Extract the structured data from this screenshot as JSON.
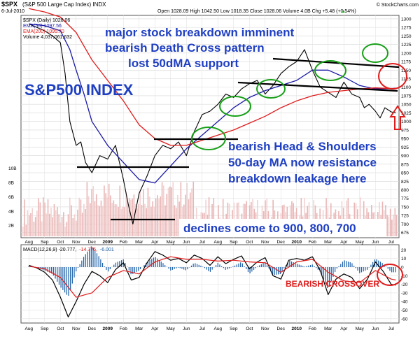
{
  "header": {
    "symbol": "$SPX",
    "full_name": "(S&P 500 Large Cap Index) INDX",
    "date": "6-Jul-2010",
    "ohlc": "Open 1028.09  High 1042.50  Low 1018.35  Close 1028.06  Volume 4.0B  Chg +5.48 (+0.54%)",
    "source": "© StockCharts.com",
    "up_arrow": "▲"
  },
  "legend": {
    "daily": "$SPX (Daily) 1028.06",
    "ema50": "EMA(50) 1097.56",
    "ema200": "EMA(200) 1095.70",
    "volume": "Volume 4,037,061,632"
  },
  "annotations": {
    "title_line1": "major stock breakdown imminent",
    "title_line2": "bearish Death Cross pattern",
    "title_line3": "lost 50dMA support",
    "index_label": "S&P500 INDEX",
    "hs_line1": "bearish Head & Shoulders",
    "hs_line2": "50-day MA now resistance",
    "hs_line3": "breakdown leakage here",
    "declines": "declines come to 900, 800, 700",
    "crossover": "BEARISH CROSSOVER"
  },
  "macd_label": {
    "prefix": "MACD(12,26,9) -20.777,",
    "signal": "-14.776,",
    "hist": "-6.001"
  },
  "colors": {
    "price": "#000000",
    "ema50": "#1a1aa6",
    "ema200": "#e01b1b",
    "volume_up": "#eab6b6",
    "volume_down": "#f2d2d2",
    "annotation_blue": "#1f3fc2",
    "circle_green": "#18a018",
    "circle_red": "#e01b1b",
    "macd_line": "#000000",
    "macd_signal": "#e01b1b",
    "macd_hist": "#1b5fa8"
  },
  "chart_data": {
    "type": "line",
    "x_ticks": [
      "Aug",
      "Sep",
      "Oct",
      "Nov",
      "Dec",
      "2009",
      "Feb",
      "Mar",
      "Apr",
      "May",
      "Jun",
      "Jul",
      "Aug",
      "Sep",
      "Oct",
      "Nov",
      "Dec",
      "2010",
      "Feb",
      "Mar",
      "Apr",
      "May",
      "Jun",
      "Jul"
    ],
    "y_ticks": [
      675,
      700,
      725,
      750,
      775,
      800,
      825,
      850,
      875,
      900,
      925,
      950,
      975,
      1000,
      1025,
      1050,
      1075,
      1100,
      1125,
      1150,
      1175,
      1200,
      1225,
      1250,
      1275,
      1300
    ],
    "ylim": [
      660,
      1310
    ],
    "volume_ticks": [
      "10B",
      "8B",
      "6B",
      "4B",
      "2B"
    ],
    "macd_ticks": [
      20,
      10,
      0,
      -10,
      -20,
      -30,
      -40,
      -50,
      -60
    ],
    "macd_ylim": [
      -65,
      26
    ],
    "series": [
      {
        "name": "$SPX (Daily)",
        "x": [
          0,
          0.5,
          1,
          1.5,
          2,
          2.3,
          2.6,
          3,
          3.3,
          3.6,
          4,
          4.5,
          5,
          5.5,
          6,
          6.3,
          6.6,
          7,
          7.5,
          8,
          8.5,
          9,
          9.5,
          10,
          10.5,
          11,
          11.5,
          12,
          12.5,
          13,
          13.5,
          14,
          14.5,
          15,
          15.5,
          16,
          16.5,
          17,
          17.5,
          18,
          18.5,
          19,
          19.5,
          20,
          20.5,
          21,
          21.3,
          21.6,
          22,
          22.3,
          22.6,
          23,
          23.3
        ],
        "values": [
          1285,
          1275,
          1265,
          1250,
          1230,
          1140,
          1000,
          930,
          940,
          880,
          850,
          900,
          890,
          930,
          830,
          760,
          700,
          790,
          840,
          900,
          930,
          920,
          940,
          900,
          970,
          1020,
          1030,
          1050,
          1080,
          1070,
          1095,
          1110,
          1120,
          1080,
          1105,
          1140,
          1160,
          1175,
          1210,
          1150,
          1100,
          1085,
          1070,
          1115,
          1080,
          1070,
          1040,
          1050,
          1030,
          1010,
          1040,
          1028,
          1025
        ]
      },
      {
        "name": "EMA(50)",
        "x": [
          0,
          1,
          2,
          2.6,
          3,
          3.5,
          4,
          5,
          6,
          7,
          8,
          9,
          10,
          11,
          12,
          13,
          14,
          15,
          16,
          17,
          18,
          19,
          20,
          21,
          22,
          23,
          23.3
        ],
        "values": [
          1285,
          1280,
          1265,
          1210,
          1150,
          1080,
          1000,
          930,
          880,
          830,
          820,
          870,
          920,
          960,
          1000,
          1040,
          1070,
          1090,
          1105,
          1120,
          1150,
          1150,
          1130,
          1105,
          1095,
          1096,
          1097
        ]
      },
      {
        "name": "EMA(200)",
        "x": [
          0,
          1,
          2,
          3,
          4,
          5,
          6,
          7,
          8,
          9,
          10,
          11,
          12,
          13,
          14,
          15,
          16,
          17,
          18,
          19,
          20,
          21,
          22,
          23,
          23.3
        ],
        "values": [
          1330,
          1320,
          1305,
          1260,
          1180,
          1120,
          1060,
          990,
          950,
          930,
          930,
          945,
          960,
          975,
          995,
          1015,
          1040,
          1060,
          1075,
          1085,
          1090,
          1095,
          1098,
          1096,
          1096
        ]
      },
      {
        "name": "MACD",
        "x": [
          0,
          0.5,
          1,
          1.5,
          2,
          2.5,
          3,
          3.5,
          4,
          4.5,
          5,
          5.5,
          6,
          6.5,
          7,
          7.5,
          8,
          8.5,
          9,
          9.5,
          10,
          10.5,
          11,
          11.5,
          12,
          12.5,
          13,
          13.5,
          14,
          14.5,
          15,
          15.5,
          16,
          16.5,
          17,
          17.5,
          18,
          18.5,
          19,
          19.5,
          20,
          20.5,
          21,
          21.5,
          22,
          22.5,
          23,
          23.3
        ],
        "values": [
          2,
          -1,
          -6,
          -15,
          -35,
          -58,
          -40,
          -20,
          -5,
          -10,
          -18,
          -3,
          5,
          -15,
          -12,
          5,
          18,
          14,
          8,
          10,
          5,
          14,
          10,
          2,
          12,
          4,
          9,
          13,
          -2,
          6,
          11,
          -10,
          -14,
          8,
          10,
          8,
          12,
          -4,
          -32,
          -14,
          -8,
          -12,
          -25,
          -14,
          6,
          -5,
          -20,
          -21
        ]
      },
      {
        "name": "Signal",
        "x": [
          0,
          1,
          2,
          3,
          4,
          5,
          6,
          7,
          8,
          9,
          10,
          11,
          12,
          13,
          14,
          15,
          16,
          17,
          18,
          19,
          20,
          21,
          22,
          23,
          23.3
        ],
        "values": [
          1,
          -2,
          -12,
          -35,
          -30,
          -12,
          -4,
          -8,
          6,
          12,
          9,
          9,
          7,
          8,
          6,
          5,
          -6,
          6,
          9,
          -6,
          -16,
          -18,
          -4,
          -14,
          -15
        ]
      }
    ],
    "xlabel": "",
    "ylabel": "",
    "grid": true,
    "legend_position": "top-left"
  }
}
